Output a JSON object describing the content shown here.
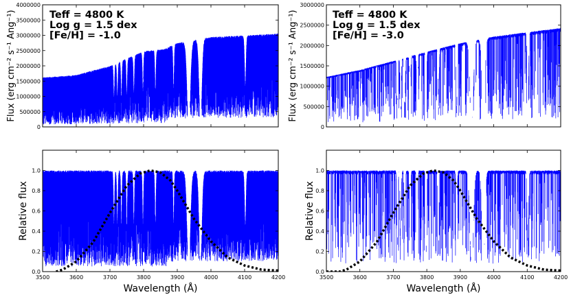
{
  "figure": {
    "shared_xlabel": "Wavelength (Å)",
    "x_ticks": [
      "3500",
      "3600",
      "3700",
      "3800",
      "3900",
      "4000",
      "4100",
      "4200"
    ]
  },
  "chart_data": [
    {
      "type": "line",
      "position": "top-left",
      "title": "",
      "xlabel": "",
      "ylabel": "Flux (erg cm⁻² s⁻¹ Ang⁻¹)",
      "xlim": [
        3500,
        4200
      ],
      "ylim": [
        0,
        4000000
      ],
      "y_ticks": [
        0,
        500000,
        1000000,
        1500000,
        2000000,
        2500000,
        3000000,
        3500000,
        4000000
      ],
      "y_tick_labels": [
        "0",
        "500000",
        "1000000",
        "1500000",
        "2000000",
        "2500000",
        "3000000",
        "3500000",
        "4000000"
      ],
      "annotation": [
        "Teff = 4800 K",
        "Log g = 1.5 dex",
        "[Fe/H] = -1.0"
      ],
      "series": [
        {
          "name": "synthetic spectrum",
          "color": "#0000ff",
          "continuum": [
            [
              3500,
              1620000
            ],
            [
              3600,
              1700000
            ],
            [
              3700,
              2000000
            ],
            [
              3800,
              2480000
            ],
            [
              3860,
              2550000
            ],
            [
              3900,
              2750000
            ],
            [
              4000,
              2950000
            ],
            [
              4100,
              3000000
            ],
            [
              4200,
              3060000
            ]
          ],
          "deep_features": [
            [
              3934,
              0
            ],
            [
              3969,
              0
            ]
          ]
        }
      ]
    },
    {
      "type": "line",
      "position": "top-right",
      "title": "",
      "xlabel": "",
      "ylabel": "Flux (erg cm⁻² s⁻¹ Ang⁻¹)",
      "xlim": [
        3500,
        4200
      ],
      "ylim": [
        0,
        3000000
      ],
      "y_ticks": [
        0,
        500000,
        1000000,
        1500000,
        2000000,
        2500000,
        3000000
      ],
      "y_tick_labels": [
        "0",
        "500000",
        "1000000",
        "1500000",
        "2000000",
        "2500000",
        "3000000"
      ],
      "annotation": [
        "Teff = 4800 K",
        "Log g = 1.5 dex",
        "[Fe/H] = -3.0"
      ],
      "series": [
        {
          "name": "synthetic spectrum",
          "color": "#0000ff",
          "continuum": [
            [
              3500,
              1230000
            ],
            [
              3600,
              1400000
            ],
            [
              3700,
              1620000
            ],
            [
              3800,
              1850000
            ],
            [
              3900,
              2060000
            ],
            [
              4000,
              2220000
            ],
            [
              4100,
              2330000
            ],
            [
              4200,
              2430000
            ]
          ]
        }
      ]
    },
    {
      "type": "line",
      "position": "bottom-left",
      "title": "",
      "xlabel": "Wavelength (Å)",
      "ylabel": "Relative flux",
      "xlim": [
        3500,
        4200
      ],
      "ylim": [
        0,
        1.2
      ],
      "y_ticks": [
        0,
        0.2,
        0.4,
        0.6,
        0.8,
        1.0
      ],
      "y_tick_labels": [
        "0.0",
        "0.2",
        "0.4",
        "0.6",
        "0.8",
        "1.0"
      ],
      "series": [
        {
          "name": "normalized spectrum",
          "color": "#0000ff"
        },
        {
          "name": "filter transmission",
          "color": "#000000",
          "style": "dotted",
          "x": [
            3540,
            3560,
            3600,
            3650,
            3700,
            3750,
            3790,
            3820,
            3850,
            3880,
            3900,
            3950,
            4000,
            4050,
            4100,
            4150,
            4200
          ],
          "y": [
            0.0,
            0.02,
            0.1,
            0.29,
            0.58,
            0.85,
            0.97,
            1.0,
            0.98,
            0.9,
            0.8,
            0.52,
            0.3,
            0.14,
            0.06,
            0.02,
            0.01
          ]
        }
      ]
    },
    {
      "type": "line",
      "position": "bottom-right",
      "title": "",
      "xlabel": "Wavelength (Å)",
      "ylabel": "Relative flux",
      "xlim": [
        3500,
        4200
      ],
      "ylim": [
        0,
        1.2
      ],
      "y_ticks": [
        0,
        0.2,
        0.4,
        0.6,
        0.8,
        1.0
      ],
      "y_tick_labels": [
        "0.0",
        "0.2",
        "0.4",
        "0.6",
        "0.8",
        "1.0"
      ],
      "series": [
        {
          "name": "normalized spectrum",
          "color": "#0000ff"
        },
        {
          "name": "filter transmission",
          "color": "#000000",
          "style": "dotted",
          "x": [
            3500,
            3540,
            3560,
            3600,
            3650,
            3700,
            3750,
            3790,
            3820,
            3850,
            3880,
            3900,
            3950,
            4000,
            4050,
            4100,
            4150,
            4200
          ],
          "y": [
            0.0,
            0.0,
            0.02,
            0.1,
            0.29,
            0.58,
            0.85,
            0.97,
            1.0,
            0.98,
            0.9,
            0.8,
            0.52,
            0.3,
            0.14,
            0.06,
            0.02,
            0.01
          ]
        }
      ]
    }
  ]
}
